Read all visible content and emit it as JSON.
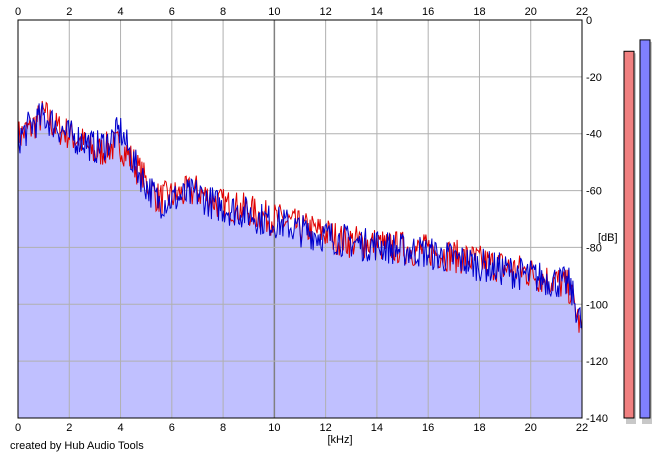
{
  "app": {
    "credit": "created by Hub Audio Tools"
  },
  "chart_data": {
    "type": "area",
    "x_unit_label": "[kHz]",
    "y_unit_label": "[dB]",
    "xlim": [
      0,
      22
    ],
    "ylim": [
      -140,
      0
    ],
    "x_ticks": [
      "0",
      "2",
      "4",
      "6",
      "8",
      "10",
      "12",
      "14",
      "16",
      "18",
      "20",
      "22"
    ],
    "y_ticks": [
      "0",
      "-20",
      "-40",
      "-60",
      "-80",
      "-100",
      "-120",
      "-140"
    ],
    "grid": true,
    "colors": {
      "fill": "#c0c0ff",
      "left_channel": "#e00000",
      "right_channel": "#0000cc",
      "grid": "#b0b0b0",
      "grid_major": "#808080"
    },
    "series": [
      {
        "color": "#e00000",
        "x": [
          0,
          0.5,
          1,
          1.5,
          2,
          2.5,
          3,
          3.5,
          4,
          4.5,
          5,
          5.5,
          6,
          6.5,
          7,
          7.5,
          8,
          8.5,
          9,
          9.5,
          10,
          10.5,
          11,
          11.5,
          12,
          12.5,
          13,
          13.5,
          14,
          14.5,
          15,
          15.5,
          16,
          16.5,
          17,
          17.5,
          18,
          18.5,
          19,
          19.5,
          20,
          20.5,
          21,
          21.5,
          22
        ],
        "values": [
          -41,
          -38,
          -33,
          -38,
          -40,
          -43,
          -47,
          -45,
          -44,
          -50,
          -57,
          -63,
          -62,
          -61,
          -60,
          -63,
          -65,
          -66,
          -67,
          -69,
          -70,
          -71,
          -73,
          -74,
          -75,
          -77,
          -78,
          -78,
          -79,
          -80,
          -80,
          -81,
          -81,
          -82,
          -83,
          -84,
          -85,
          -86,
          -87,
          -88,
          -89,
          -91,
          -92,
          -94,
          -110
        ]
      },
      {
        "color": "#0000cc",
        "x": [
          0,
          0.5,
          1,
          1.5,
          2,
          2.5,
          3,
          3.5,
          4,
          4.5,
          5,
          5.5,
          6,
          6.5,
          7,
          7.5,
          8,
          8.5,
          9,
          9.5,
          10,
          10.5,
          11,
          11.5,
          12,
          12.5,
          13,
          13.5,
          14,
          14.5,
          15,
          15.5,
          16,
          16.5,
          17,
          17.5,
          18,
          18.5,
          19,
          19.5,
          20,
          20.5,
          21,
          21.5,
          22
        ],
        "values": [
          -42,
          -37,
          -34,
          -37,
          -41,
          -42,
          -45,
          -43,
          -39,
          -50,
          -58,
          -64,
          -63,
          -62,
          -61,
          -64,
          -66,
          -67,
          -68,
          -70,
          -71,
          -72,
          -74,
          -75,
          -76,
          -77,
          -78,
          -79,
          -79,
          -80,
          -81,
          -81,
          -82,
          -83,
          -84,
          -85,
          -86,
          -87,
          -88,
          -89,
          -90,
          -91,
          -92,
          -93,
          -108
        ]
      }
    ]
  },
  "meters": {
    "left_level_db": -11,
    "right_level_db": -7,
    "left_color": "#f08080",
    "right_color": "#8080ff"
  }
}
